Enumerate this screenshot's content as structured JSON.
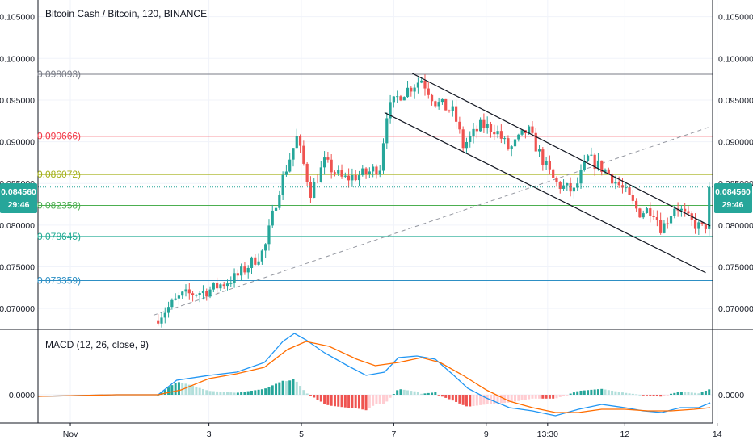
{
  "header": {
    "title": "Bitcoin Cash / Bitcoin, 120, BINANCE"
  },
  "macd": {
    "label": "MACD (12, 26, close, 9)"
  },
  "price_tag": {
    "value": "0.084560",
    "countdown": "29:46"
  },
  "colors": {
    "up": "#26a69a",
    "down": "#ef5350",
    "macd_line": "#2196f3",
    "signal_line": "#ff6d00",
    "hist_up_strong": "#26a69a",
    "hist_up_weak": "#b2dfdb",
    "hist_down_strong": "#ef5350",
    "hist_down_weak": "#ffcdd2",
    "tag_bg": "#26a69a"
  },
  "chart_data": [
    {
      "type": "candlestick",
      "title": "Bitcoin Cash / Bitcoin, 120, BINANCE",
      "ylim": [
        0.0675,
        0.107
      ],
      "y_ticks": [
        "0.070000",
        "0.075000",
        "0.080000",
        "0.085000",
        "0.090000",
        "0.095000",
        "0.100000",
        "0.105000"
      ],
      "y_tick_values": [
        0.07,
        0.075,
        0.08,
        0.085,
        0.09,
        0.095,
        0.1,
        0.105
      ],
      "x_tick_labels": [
        "Nov",
        "3",
        "5",
        "7",
        "9",
        "13:30",
        "12",
        "14"
      ],
      "x_tick_values": [
        0,
        3,
        5,
        7,
        9,
        10.33,
        12,
        14
      ],
      "x_range": [
        -0.7,
        13.9
      ],
      "fib_levels": [
        {
          "value": 0.098093,
          "label": "0.098093",
          "color": "#787b86"
        },
        {
          "value": 0.090666,
          "label": "0.090666",
          "color": "#f23645"
        },
        {
          "value": 0.086072,
          "label": "0.086072",
          "color": "#a3b018"
        },
        {
          "value": 0.082358,
          "label": "0.082358",
          "color": "#4caf50"
        },
        {
          "value": 0.078645,
          "label": "0.078645",
          "color": "#22ab94"
        },
        {
          "value": 0.073359,
          "label": "0.073359",
          "color": "#2d8fc4"
        }
      ],
      "current_price": 0.08456,
      "channel": {
        "upper": {
          "x1": 7.4,
          "y1": 0.0982,
          "x2": 13.85,
          "y2": 0.0799
        },
        "lower": {
          "x1": 6.8,
          "y1": 0.0935,
          "x2": 13.75,
          "y2": 0.0743
        }
      },
      "trend_line": {
        "x1": 1.8,
        "y1": 0.0692,
        "x2": 13.85,
        "y2": 0.0918
      },
      "anchors": [
        {
          "x": 1.9,
          "y": 0.069
        },
        {
          "x": 2.4,
          "y": 0.0715
        },
        {
          "x": 3.0,
          "y": 0.0722
        },
        {
          "x": 3.6,
          "y": 0.0738
        },
        {
          "x": 4.2,
          "y": 0.077
        },
        {
          "x": 4.5,
          "y": 0.084
        },
        {
          "x": 4.9,
          "y": 0.0905
        },
        {
          "x": 5.2,
          "y": 0.084
        },
        {
          "x": 5.5,
          "y": 0.0875
        },
        {
          "x": 5.9,
          "y": 0.0855
        },
        {
          "x": 6.4,
          "y": 0.0862
        },
        {
          "x": 6.7,
          "y": 0.087
        },
        {
          "x": 6.85,
          "y": 0.0935
        },
        {
          "x": 7.1,
          "y": 0.0955
        },
        {
          "x": 7.6,
          "y": 0.0975
        },
        {
          "x": 7.9,
          "y": 0.0948
        },
        {
          "x": 8.3,
          "y": 0.0935
        },
        {
          "x": 8.5,
          "y": 0.0895
        },
        {
          "x": 8.9,
          "y": 0.092
        },
        {
          "x": 9.2,
          "y": 0.0915
        },
        {
          "x": 9.5,
          "y": 0.089
        },
        {
          "x": 9.9,
          "y": 0.0915
        },
        {
          "x": 10.2,
          "y": 0.088
        },
        {
          "x": 10.5,
          "y": 0.085
        },
        {
          "x": 10.9,
          "y": 0.084
        },
        {
          "x": 11.2,
          "y": 0.088
        },
        {
          "x": 11.6,
          "y": 0.0865
        },
        {
          "x": 12.0,
          "y": 0.084
        },
        {
          "x": 12.3,
          "y": 0.0815
        },
        {
          "x": 12.6,
          "y": 0.082
        },
        {
          "x": 12.8,
          "y": 0.0795
        },
        {
          "x": 13.1,
          "y": 0.0825
        },
        {
          "x": 13.4,
          "y": 0.0805
        },
        {
          "x": 13.7,
          "y": 0.0795
        },
        {
          "x": 13.75,
          "y": 0.08
        },
        {
          "x": 13.85,
          "y": 0.08456
        }
      ]
    },
    {
      "type": "line",
      "title": "MACD (12, 26, close, 9)",
      "zero_tick": "0.0000",
      "ylim": [
        -0.0017,
        0.004
      ],
      "series": [
        {
          "points": [
            [
              -0.7,
              -0.0001
            ],
            [
              1.0,
              0.0
            ],
            [
              1.9,
              0.0
            ],
            [
              2.3,
              0.0009
            ],
            [
              3.0,
              0.0012
            ],
            [
              3.6,
              0.0014
            ],
            [
              4.2,
              0.002
            ],
            [
              4.6,
              0.0033
            ],
            [
              4.85,
              0.0038
            ],
            [
              5.1,
              0.0034
            ],
            [
              5.5,
              0.0026
            ],
            [
              6.0,
              0.0018
            ],
            [
              6.4,
              0.0012
            ],
            [
              6.8,
              0.0014
            ],
            [
              7.1,
              0.0023
            ],
            [
              7.5,
              0.0024
            ],
            [
              7.9,
              0.0022
            ],
            [
              8.3,
              0.0012
            ],
            [
              8.6,
              0.0004
            ],
            [
              9.0,
              -0.0002
            ],
            [
              9.5,
              -0.0008
            ],
            [
              10.0,
              -0.001
            ],
            [
              10.5,
              -0.0013
            ],
            [
              11.0,
              -0.0009
            ],
            [
              11.5,
              -0.0006
            ],
            [
              12.0,
              -0.0008
            ],
            [
              12.4,
              -0.001
            ],
            [
              12.8,
              -0.0011
            ],
            [
              13.2,
              -0.0008
            ],
            [
              13.6,
              -0.0008
            ],
            [
              13.85,
              -0.0005
            ]
          ]
        },
        {
          "points": [
            [
              -0.7,
              -0.0001
            ],
            [
              1.0,
              0.0
            ],
            [
              1.9,
              0.0
            ],
            [
              2.4,
              0.0003
            ],
            [
              3.0,
              0.001
            ],
            [
              3.6,
              0.0013
            ],
            [
              4.2,
              0.0017
            ],
            [
              4.7,
              0.0028
            ],
            [
              5.1,
              0.0033
            ],
            [
              5.6,
              0.003
            ],
            [
              6.2,
              0.0022
            ],
            [
              6.6,
              0.0018
            ],
            [
              7.1,
              0.002
            ],
            [
              7.6,
              0.0023
            ],
            [
              8.0,
              0.002
            ],
            [
              8.5,
              0.0012
            ],
            [
              9.0,
              0.0003
            ],
            [
              9.5,
              -0.0004
            ],
            [
              10.0,
              -0.0008
            ],
            [
              10.5,
              -0.0011
            ],
            [
              11.0,
              -0.0011
            ],
            [
              11.5,
              -0.0009
            ],
            [
              12.0,
              -0.0009
            ],
            [
              12.5,
              -0.001
            ],
            [
              13.0,
              -0.001
            ],
            [
              13.5,
              -0.0009
            ],
            [
              13.85,
              -0.0008
            ]
          ]
        }
      ]
    }
  ]
}
